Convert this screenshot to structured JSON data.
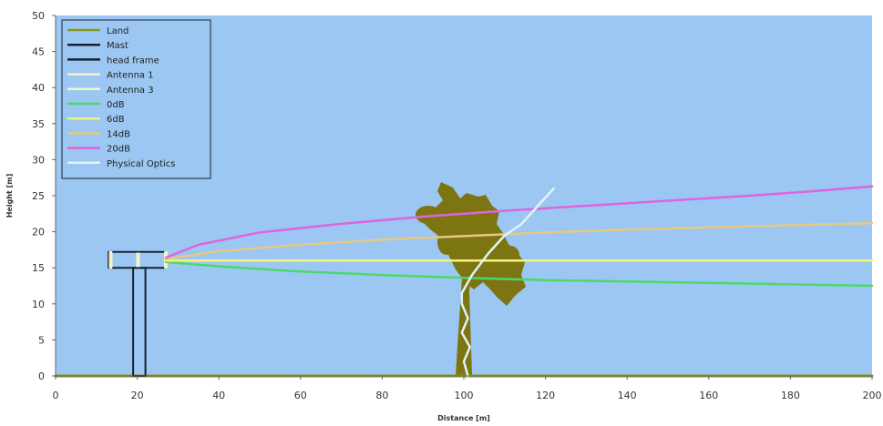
{
  "chart_data": {
    "type": "line",
    "xlabel": "Distance [m]",
    "ylabel": "Height [m]",
    "xlim": [
      0,
      200
    ],
    "ylim": [
      0,
      50
    ],
    "x_ticks": [
      0,
      20,
      40,
      60,
      80,
      100,
      120,
      140,
      160,
      180,
      200
    ],
    "y_ticks": [
      0,
      5,
      10,
      15,
      20,
      25,
      30,
      35,
      40,
      45,
      50
    ],
    "plot_background": "#9cc7f2",
    "grid": false,
    "legend_position": "top-left",
    "series": [
      {
        "name": "Land",
        "color": "#8a9a1a",
        "points": [
          [
            0,
            0
          ],
          [
            200,
            0
          ]
        ]
      },
      {
        "name": "Mast",
        "color": "#1a2030",
        "points": [
          [
            19,
            0
          ],
          [
            19,
            15
          ],
          [
            22,
            15
          ],
          [
            22,
            0
          ],
          [
            19,
            0
          ]
        ]
      },
      {
        "name": "head frame",
        "color": "#1a2030",
        "points": [
          [
            13,
            15
          ],
          [
            27,
            15
          ],
          [
            27,
            17.2
          ],
          [
            13,
            17.2
          ],
          [
            13,
            15
          ]
        ]
      },
      {
        "name": "Antenna 1",
        "color": "#f4f4c8",
        "points": [
          [
            13.5,
            15.1
          ],
          [
            13.5,
            17.1
          ]
        ]
      },
      {
        "name": "Antenna 3",
        "color": "#f4f4c8",
        "points": [
          [
            27,
            15.1
          ],
          [
            27,
            17.1
          ]
        ]
      },
      {
        "name": "0dB",
        "color": "#4bd86a",
        "points": [
          [
            27,
            15.8
          ],
          [
            40,
            15.2
          ],
          [
            60,
            14.5
          ],
          [
            80,
            14
          ],
          [
            100,
            13.6
          ],
          [
            120,
            13.3
          ],
          [
            140,
            13.1
          ],
          [
            160,
            12.9
          ],
          [
            180,
            12.7
          ],
          [
            200,
            12.5
          ]
        ]
      },
      {
        "name": "6dB",
        "color": "#f2f27a",
        "points": [
          [
            27,
            16
          ],
          [
            200,
            16
          ]
        ]
      },
      {
        "name": "14dB",
        "color": "#e6c882",
        "points": [
          [
            27,
            16.2
          ],
          [
            40,
            17.3
          ],
          [
            60,
            18.2
          ],
          [
            80,
            18.9
          ],
          [
            100,
            19.4
          ],
          [
            120,
            19.9
          ],
          [
            140,
            20.3
          ],
          [
            160,
            20.6
          ],
          [
            180,
            20.9
          ],
          [
            200,
            21.2
          ]
        ]
      },
      {
        "name": "20dB",
        "color": "#dd66dd",
        "points": [
          [
            27,
            16.4
          ],
          [
            35,
            18.2
          ],
          [
            50,
            19.9
          ],
          [
            70,
            21.1
          ],
          [
            90,
            22.1
          ],
          [
            110,
            22.9
          ],
          [
            130,
            23.6
          ],
          [
            150,
            24.3
          ],
          [
            170,
            25
          ],
          [
            185,
            25.6
          ],
          [
            200,
            26.3
          ]
        ]
      },
      {
        "name": "Physical Optics",
        "color": "#e0f4f6",
        "points": [
          [
            101,
            0
          ],
          [
            100,
            2
          ],
          [
            101.5,
            4
          ],
          [
            99.5,
            6
          ],
          [
            101,
            8
          ],
          [
            99.5,
            10
          ],
          [
            99.5,
            11.5
          ],
          [
            102,
            14
          ],
          [
            106,
            17
          ],
          [
            110,
            19.5
          ],
          [
            114,
            21
          ],
          [
            118,
            23.5
          ],
          [
            122,
            26
          ]
        ]
      }
    ],
    "tree_color": "#7d7512"
  }
}
